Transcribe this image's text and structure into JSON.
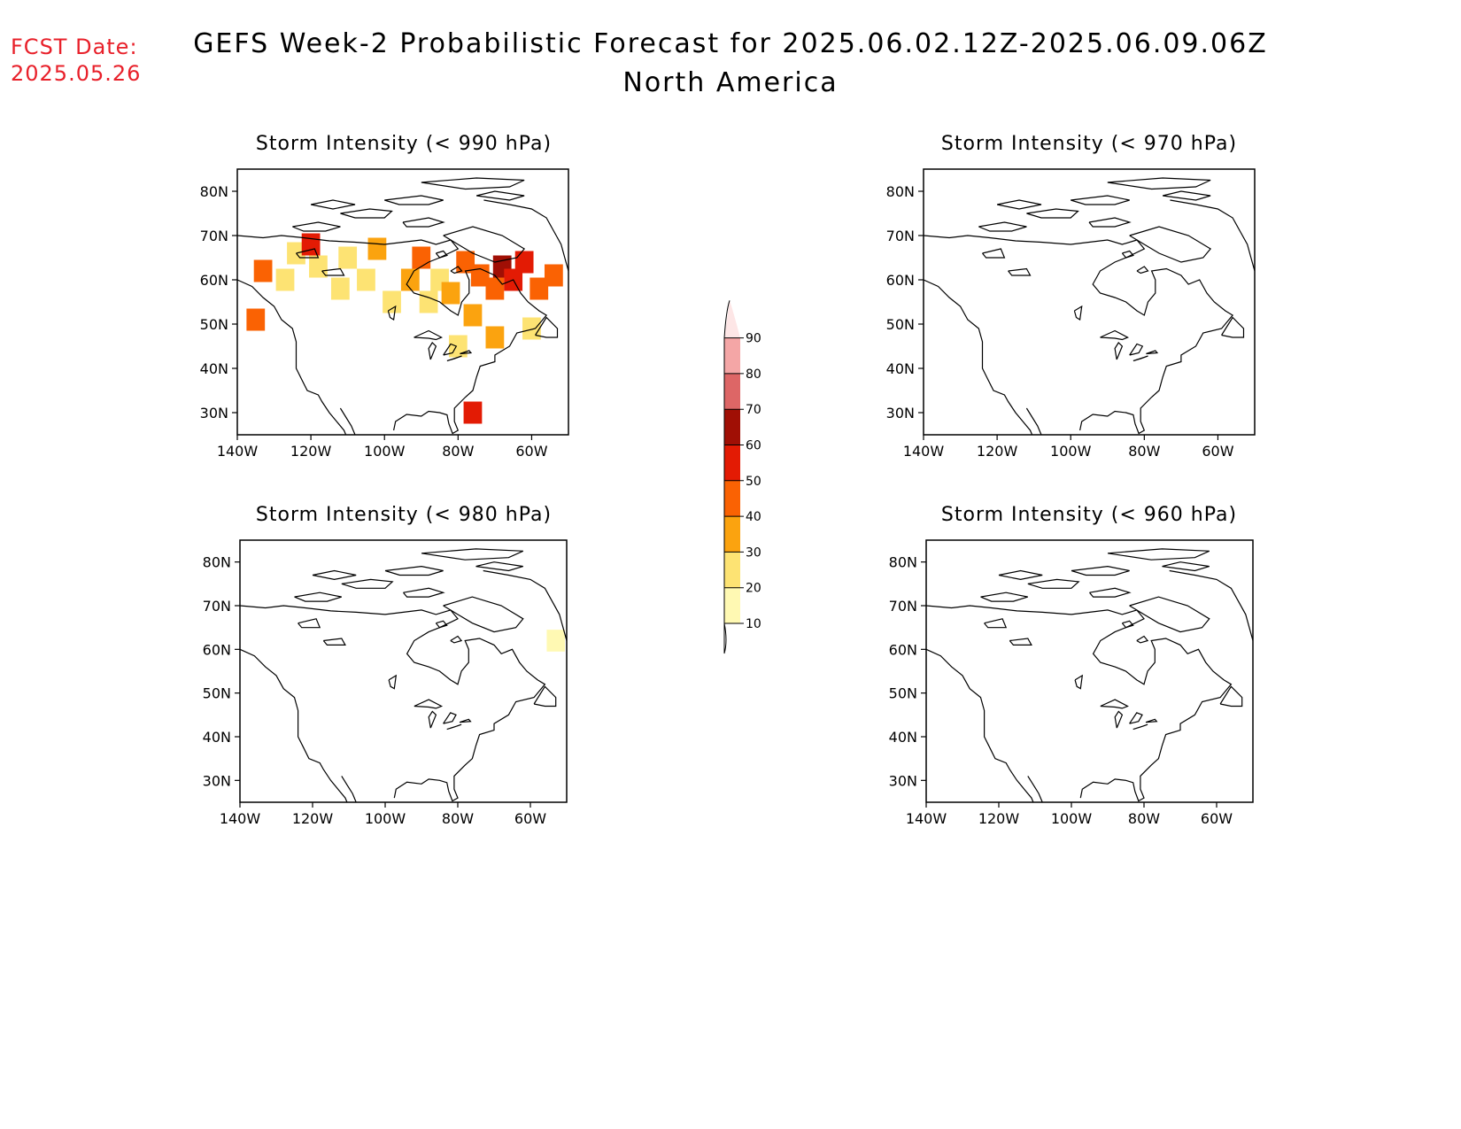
{
  "fcst_date": {
    "label": "FCST Date:",
    "value": "2025.05.26"
  },
  "title": {
    "line1": "GEFS Week-2 Probabilistic Forecast for 2025.06.02.12Z-2025.06.09.06Z",
    "line2": "North America"
  },
  "axes": {
    "lat_ticks": [
      "80N",
      "70N",
      "60N",
      "50N",
      "40N",
      "30N"
    ],
    "lat_values": [
      80,
      70,
      60,
      50,
      40,
      30
    ],
    "lon_ticks": [
      "140W",
      "120W",
      "100W",
      "80W",
      "60W"
    ],
    "lon_values": [
      -140,
      -120,
      -100,
      -80,
      -60
    ],
    "lat_range": [
      25,
      85
    ],
    "lon_range": [
      -140,
      -50
    ]
  },
  "panels": [
    {
      "id": "p990",
      "title": "Storm Intensity (< 990 hPa)"
    },
    {
      "id": "p970",
      "title": "Storm Intensity (< 970 hPa)"
    },
    {
      "id": "p980",
      "title": "Storm Intensity (< 980 hPa)"
    },
    {
      "id": "p960",
      "title": "Storm Intensity (< 960 hPa)"
    }
  ],
  "colorbar": {
    "levels": [
      10,
      20,
      30,
      40,
      50,
      60,
      70,
      80,
      90
    ],
    "labels": [
      "10",
      "20",
      "30",
      "40",
      "50",
      "60",
      "70",
      "80",
      "90"
    ],
    "colors": [
      "#fff9b3",
      "#fde373",
      "#fba30f",
      "#fa6203",
      "#e31b04",
      "#a00f05",
      "#dd6666",
      "#f4a6a6",
      "#fde6e6"
    ]
  },
  "probability_cells": {
    "p990": [
      {
        "lon": -135,
        "lat": 51,
        "level": 40
      },
      {
        "lon": -133,
        "lat": 62,
        "level": 40
      },
      {
        "lon": -127,
        "lat": 60,
        "level": 20
      },
      {
        "lon": -124,
        "lat": 66,
        "level": 20
      },
      {
        "lon": -120,
        "lat": 68,
        "level": 50
      },
      {
        "lon": -118,
        "lat": 63,
        "level": 20
      },
      {
        "lon": -112,
        "lat": 58,
        "level": 20
      },
      {
        "lon": -110,
        "lat": 65,
        "level": 20
      },
      {
        "lon": -105,
        "lat": 60,
        "level": 20
      },
      {
        "lon": -102,
        "lat": 67,
        "level": 30
      },
      {
        "lon": -98,
        "lat": 55,
        "level": 20
      },
      {
        "lon": -93,
        "lat": 60,
        "level": 30
      },
      {
        "lon": -90,
        "lat": 65,
        "level": 40
      },
      {
        "lon": -88,
        "lat": 55,
        "level": 20
      },
      {
        "lon": -85,
        "lat": 60,
        "level": 20
      },
      {
        "lon": -82,
        "lat": 57,
        "level": 30
      },
      {
        "lon": -78,
        "lat": 64,
        "level": 40
      },
      {
        "lon": -76,
        "lat": 52,
        "level": 30
      },
      {
        "lon": -74,
        "lat": 61,
        "level": 40
      },
      {
        "lon": -70,
        "lat": 58,
        "level": 40
      },
      {
        "lon": -68,
        "lat": 63,
        "level": 60
      },
      {
        "lon": -65,
        "lat": 60,
        "level": 50
      },
      {
        "lon": -62,
        "lat": 64,
        "level": 50
      },
      {
        "lon": -58,
        "lat": 58,
        "level": 40
      },
      {
        "lon": -54,
        "lat": 61,
        "level": 40
      },
      {
        "lon": -76,
        "lat": 30,
        "level": 50
      },
      {
        "lon": -80,
        "lat": 45,
        "level": 20
      },
      {
        "lon": -70,
        "lat": 47,
        "level": 30
      },
      {
        "lon": -60,
        "lat": 49,
        "level": 20
      }
    ],
    "p980": [
      {
        "lon": -53,
        "lat": 62,
        "level": 10
      }
    ],
    "p970": [],
    "p960": []
  }
}
